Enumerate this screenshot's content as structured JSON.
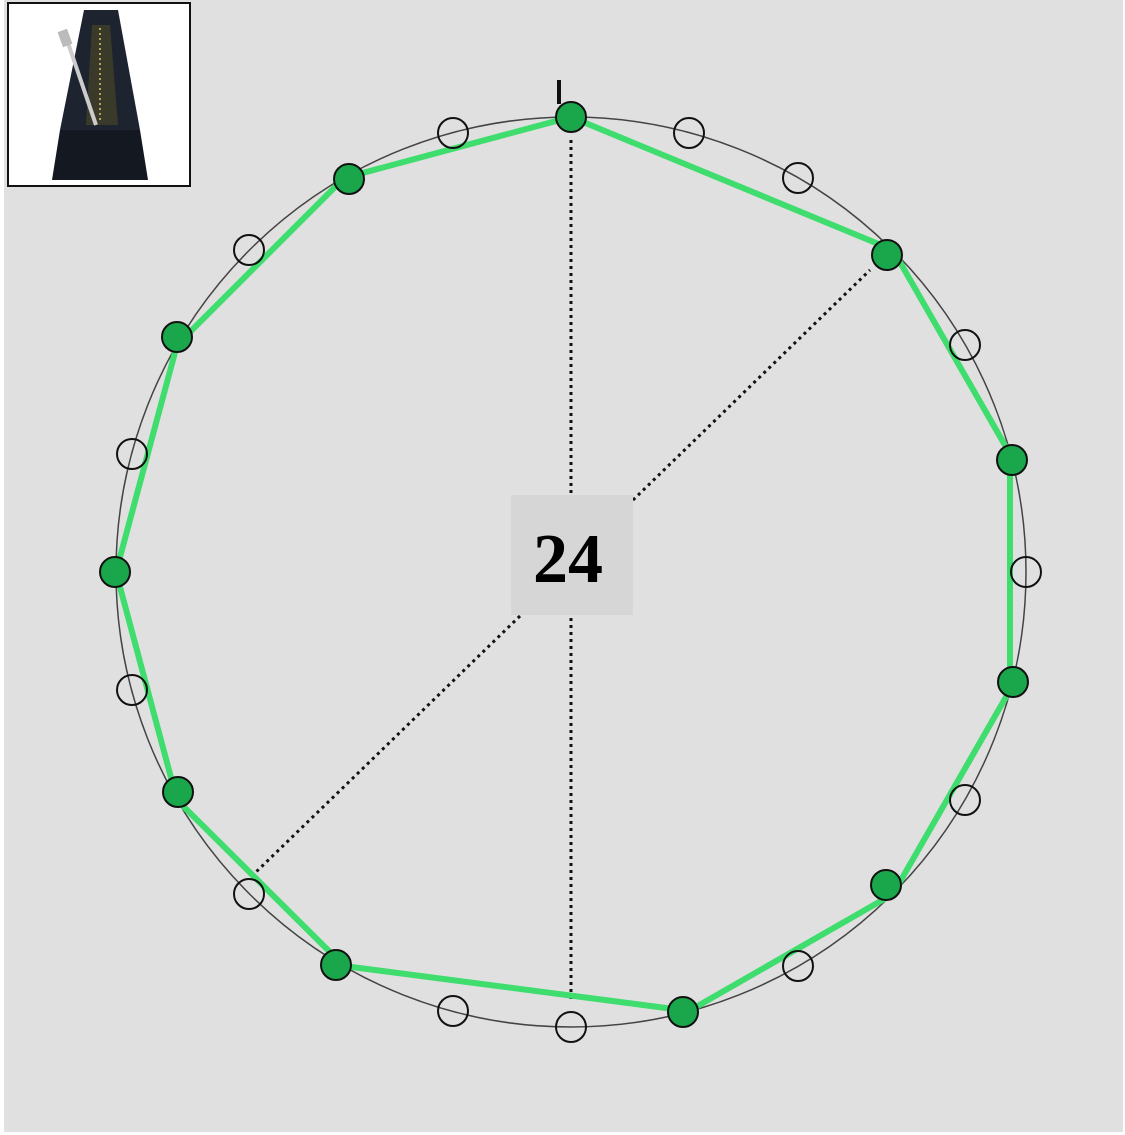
{
  "counter": {
    "label": "24"
  }
}
